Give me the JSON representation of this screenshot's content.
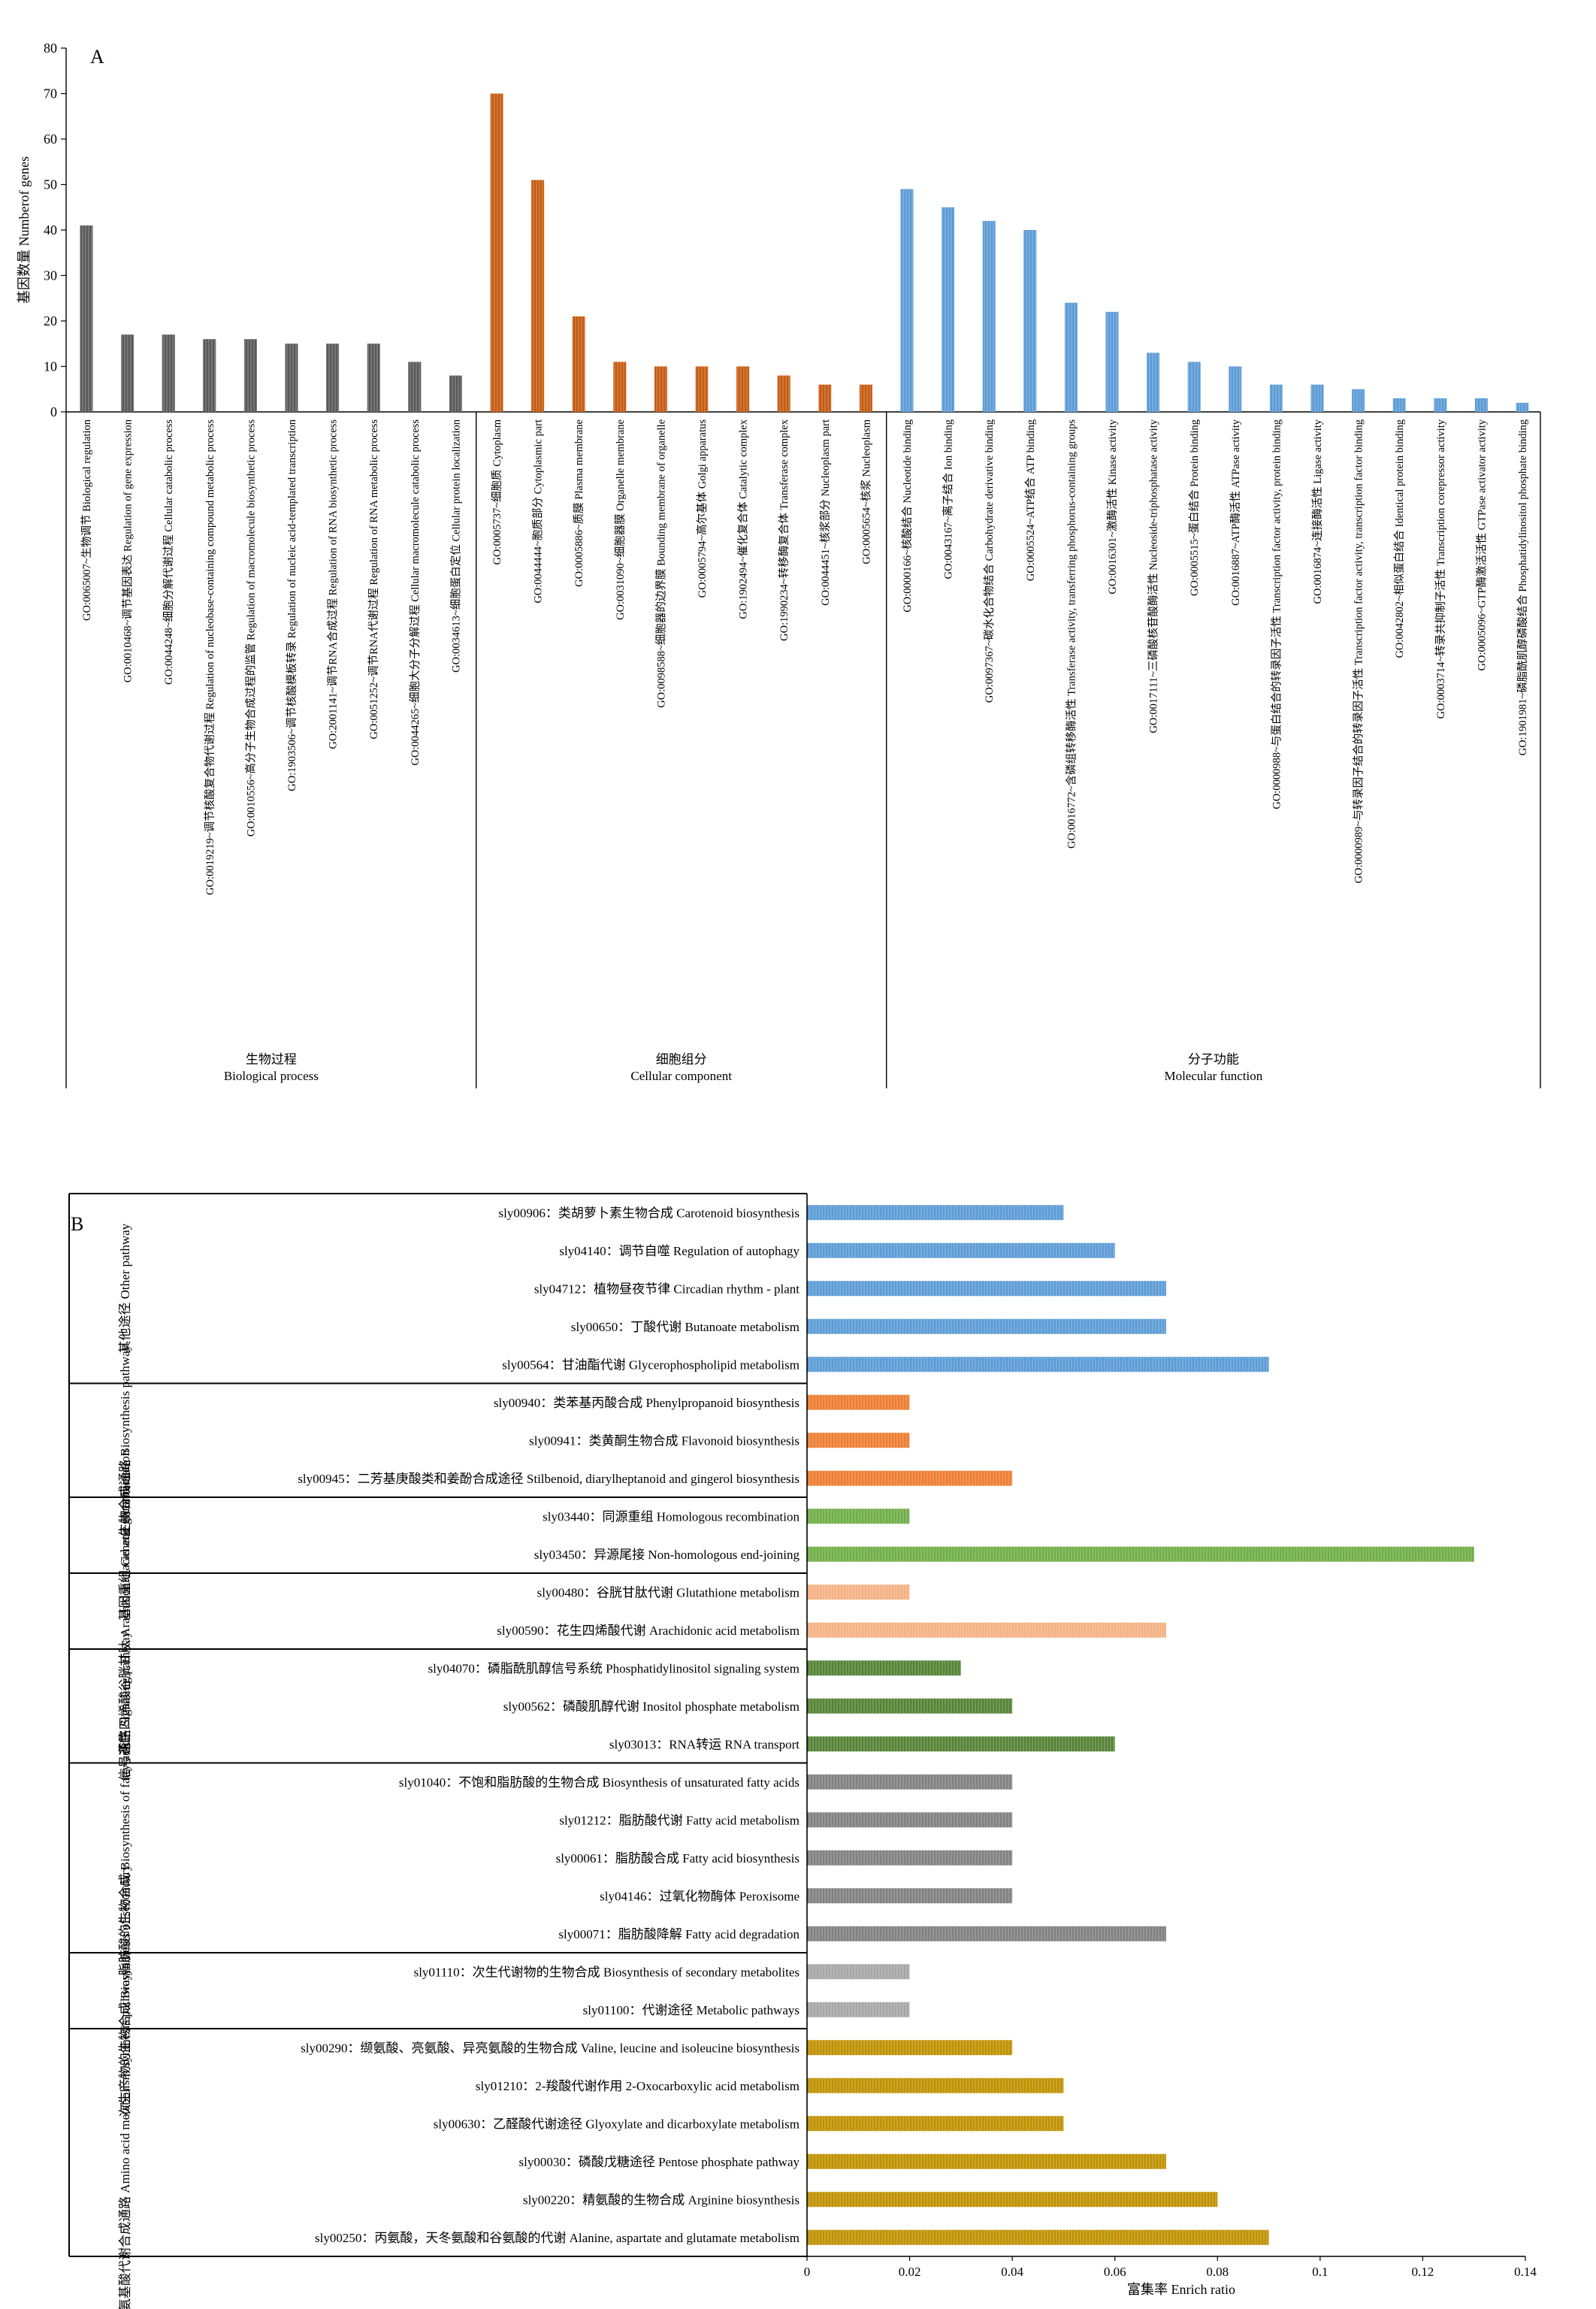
{
  "chart_data": [
    {
      "panel": "A",
      "type": "bar",
      "ylabel": "基因数量 Numberof genes",
      "ylim": [
        0,
        80
      ],
      "yticks": [
        0,
        10,
        20,
        30,
        40,
        50,
        60,
        70,
        80
      ],
      "colors": {
        "Biological process": "#595959",
        "Cellular component": "#c55a11",
        "Molecular function": "#5b9bd5"
      },
      "groups": [
        {
          "label_cn": "生物过程",
          "label_en": "Biological process"
        },
        {
          "label_cn": "细胞组分",
          "label_en": "Cellular component"
        },
        {
          "label_cn": "分子功能",
          "label_en": "Molecular function"
        }
      ],
      "bars": [
        {
          "group": 0,
          "label": "GO:0065007~生物调节 Biological regulation",
          "value": 41
        },
        {
          "group": 0,
          "label": "GO:0010468~调节基因表达 Regulation of gene expression",
          "value": 17
        },
        {
          "group": 0,
          "label": "GO:0044248~细胞分解代谢过程 Cellular catabolic process",
          "value": 17
        },
        {
          "group": 0,
          "label": "GO:0019219~调节核酸复合物代谢过程 Regulation of nucleobase-containing compound metabolic process",
          "value": 16
        },
        {
          "group": 0,
          "label": "GO:0010556~高分子生物合成过程的监管 Regulation of macromolecule biosynthetic process",
          "value": 16
        },
        {
          "group": 0,
          "label": "GO:1903506~调节核酸模板转录 Regulation of nucleic acid-templated transcription",
          "value": 15
        },
        {
          "group": 0,
          "label": "GO:2001141~调节RNA合成过程 Regulation of RNA biosynthetic process",
          "value": 15
        },
        {
          "group": 0,
          "label": "GO:0051252~调节RNA代谢过程 Regulation of RNA metabolic process",
          "value": 15
        },
        {
          "group": 0,
          "label": "GO:0044265~细胞大分子分解过程 Cellular macromolecule catabolic process",
          "value": 11
        },
        {
          "group": 0,
          "label": "GO:0034613~细胞蛋白定位 Cellular protein localization",
          "value": 8
        },
        {
          "group": 1,
          "label": "GO:0005737~细胞质 Cytoplasm",
          "value": 70
        },
        {
          "group": 1,
          "label": "GO:0044444~胞质部分 Cytoplasmic part",
          "value": 51
        },
        {
          "group": 1,
          "label": "GO:0005886~质膜 Plasma membrane",
          "value": 21
        },
        {
          "group": 1,
          "label": "GO:0031090~细胞器膜 Organelle membrane",
          "value": 11
        },
        {
          "group": 1,
          "label": "GO:0098588~细胞器的边界膜 Bounding membrane of organelle",
          "value": 10
        },
        {
          "group": 1,
          "label": "GO:0005794~高尔基体 Golgi apparatus",
          "value": 10
        },
        {
          "group": 1,
          "label": "GO:1902494~催化复合体 Catalytic complex",
          "value": 10
        },
        {
          "group": 1,
          "label": "GO:1990234~转移酶复合体 Transferase complex",
          "value": 8
        },
        {
          "group": 1,
          "label": "GO:0044451~核浆部分 Nucleoplasm part",
          "value": 6
        },
        {
          "group": 1,
          "label": "GO:0005654~核浆 Nucleoplasm",
          "value": 6
        },
        {
          "group": 2,
          "label": "GO:0000166~核酸结合 Nucleotide binding",
          "value": 49
        },
        {
          "group": 2,
          "label": "GO:0043167~离子结合 Ion binding",
          "value": 45
        },
        {
          "group": 2,
          "label": "GO:0097367~碳水化合物结合 Carbohydrate derivative binding",
          "value": 42
        },
        {
          "group": 2,
          "label": "GO:0005524~ATP结合 ATP binding",
          "value": 40
        },
        {
          "group": 2,
          "label": "GO:0016772~含磷组转移酶活性 Transferase activity, transferring phosphorus-containing groups",
          "value": 24
        },
        {
          "group": 2,
          "label": "GO:0016301~激酶活性 Kinase activity",
          "value": 22
        },
        {
          "group": 2,
          "label": "GO:0017111~三磷酸核苷酸酶活性 Nucleoside-triphosphatase activity",
          "value": 13
        },
        {
          "group": 2,
          "label": "GO:0005515~蛋白结合 Protein binding",
          "value": 11
        },
        {
          "group": 2,
          "label": "GO:0016887~ATP酶活性 ATPase activity",
          "value": 10
        },
        {
          "group": 2,
          "label": "GO:0000988~与蛋白结合的转录因子活性 Transcription factor activity, protein binding",
          "value": 6
        },
        {
          "group": 2,
          "label": "GO:0016874~连接酶活性 Ligase activity",
          "value": 6
        },
        {
          "group": 2,
          "label": "GO:0000989~与转录因子结合的转录因子活性 Transcription factor activity, transcription factor binding",
          "value": 5
        },
        {
          "group": 2,
          "label": "GO:0042802~相似蛋白结合 Identical protein binding",
          "value": 3
        },
        {
          "group": 2,
          "label": "GO:0003714~转录共抑制子活性 Transcription corepressor activity",
          "value": 3
        },
        {
          "group": 2,
          "label": "GO:0005096~GTP酶激活活性 GTPase activator activity",
          "value": 3
        },
        {
          "group": 2,
          "label": "GO:1901981~磷脂酰肌醇磷酸结合 Phosphatidylinositol phosphate binding",
          "value": 2
        }
      ]
    },
    {
      "panel": "B",
      "type": "bar",
      "orientation": "horizontal",
      "xlabel": "富集率 Enrich ratio",
      "xlim": [
        0,
        0.14
      ],
      "xticks": [
        "0",
        "0.02",
        "0.04",
        "0.06",
        "0.08",
        "0.1",
        "0.12",
        "0.14"
      ],
      "groups": [
        {
          "label": "其他途径 Other pathway",
          "color": "#5b9bd5",
          "rows": [
            {
              "label": "sly00906：类胡萝卜素生物合成 Carotenoid biosynthesis",
              "value": 0.05
            },
            {
              "label": "sly04140：调节自噬 Regulation of autophagy",
              "value": 0.06
            },
            {
              "label": "sly04712：植物昼夜节律 Circadian rhythm - plant",
              "value": 0.07
            },
            {
              "label": "sly00650：丁酸代谢 Butanoate metabolism",
              "value": 0.07
            },
            {
              "label": "sly00564：甘油酯代谢 Glycerophospholipid metabolism",
              "value": 0.09
            }
          ]
        },
        {
          "label": "生物合成通路 Biosynthesis pathway",
          "color": "#ed7d31",
          "rows": [
            {
              "label": "sly00940：类苯基丙酸合成 Phenylpropanoid biosynthesis",
              "value": 0.02
            },
            {
              "label": "sly00941：类黄酮生物合成 Flavonoid biosynthesis",
              "value": 0.02
            },
            {
              "label": "sly00945：二芳基庚酸类和姜酚合成途径 Stilbenoid, diarylheptanoid and gingerol biosynthesis",
              "value": 0.04
            }
          ]
        },
        {
          "label": "基因重组 Genetic recombination",
          "color": "#70ad47",
          "rows": [
            {
              "label": "sly03440：同源重组 Homologous recombination",
              "value": 0.02
            },
            {
              "label": "sly03450：异源尾接 Non-homologous end-joining",
              "value": 0.13
            }
          ]
        },
        {
          "label": "花生四烯酸谷胱甘肽 Arachidonic acid and glutathione",
          "color": "#f4b183",
          "rows": [
            {
              "label": "sly00480：谷胱甘肽代谢 Glutathione metabolism",
              "value": 0.02
            },
            {
              "label": "sly00590：花生四烯酸代谢 Arachidonic acid metabolism",
              "value": 0.07
            }
          ]
        },
        {
          "label": "信号通路 Signaling pathway",
          "color": "#548235",
          "rows": [
            {
              "label": "sly04070：磷脂酰肌醇信号系统 Phosphatidylinositol signaling system",
              "value": 0.03
            },
            {
              "label": "sly00562：磷酸肌醇代谢 Inositol phosphate metabolism",
              "value": 0.04
            },
            {
              "label": "sly03013：RNA转运 RNA transport",
              "value": 0.06
            }
          ]
        },
        {
          "label": "脂肪酸的生物合成 Biosynthesis of fatty acid",
          "color": "#808080",
          "rows": [
            {
              "label": "sly01040：不饱和脂肪酸的生物合成 Biosynthesis of unsaturated fatty acids",
              "value": 0.04
            },
            {
              "label": "sly01212：脂肪酸代谢 Fatty acid metabolism",
              "value": 0.04
            },
            {
              "label": "sly00061：脂肪酸合成 Fatty acid biosynthesis",
              "value": 0.04
            },
            {
              "label": "sly04146：过氧化物酶体 Peroxisome",
              "value": 0.04
            },
            {
              "label": "sly00071：脂肪酸降解 Fatty acid degradation",
              "value": 0.07
            }
          ]
        },
        {
          "label": "次生产物的生物合成 Biosynthesis of secondary",
          "color": "#a6a6a6",
          "rows": [
            {
              "label": "sly01110：次生代谢物的生物合成 Biosynthesis of secondary metabolites",
              "value": 0.02
            },
            {
              "label": "sly01100：代谢途径 Metabolic pathways",
              "value": 0.02
            }
          ]
        },
        {
          "label": "氨基酸代谢合成通路 Amino acid metabolism synthesis pathway",
          "color": "#bf9000",
          "rows": [
            {
              "label": "sly00290：缬氨酸、亮氨酸、异亮氨酸的生物合成 Valine, leucine and isoleucine biosynthesis",
              "value": 0.04
            },
            {
              "label": "sly01210：2-羧酸代谢作用 2-Oxocarboxylic acid metabolism",
              "value": 0.05
            },
            {
              "label": "sly00630：乙醛酸代谢途径 Glyoxylate and dicarboxylate metabolism",
              "value": 0.05
            },
            {
              "label": "sly00030：磷酸戊糖途径 Pentose phosphate pathway",
              "value": 0.07
            },
            {
              "label": "sly00220：精氨酸的生物合成 Arginine biosynthesis",
              "value": 0.08
            },
            {
              "label": "sly00250：丙氨酸，天冬氨酸和谷氨酸的代谢 Alanine, aspartate and glutamate metabolism",
              "value": 0.09
            }
          ]
        }
      ]
    }
  ]
}
